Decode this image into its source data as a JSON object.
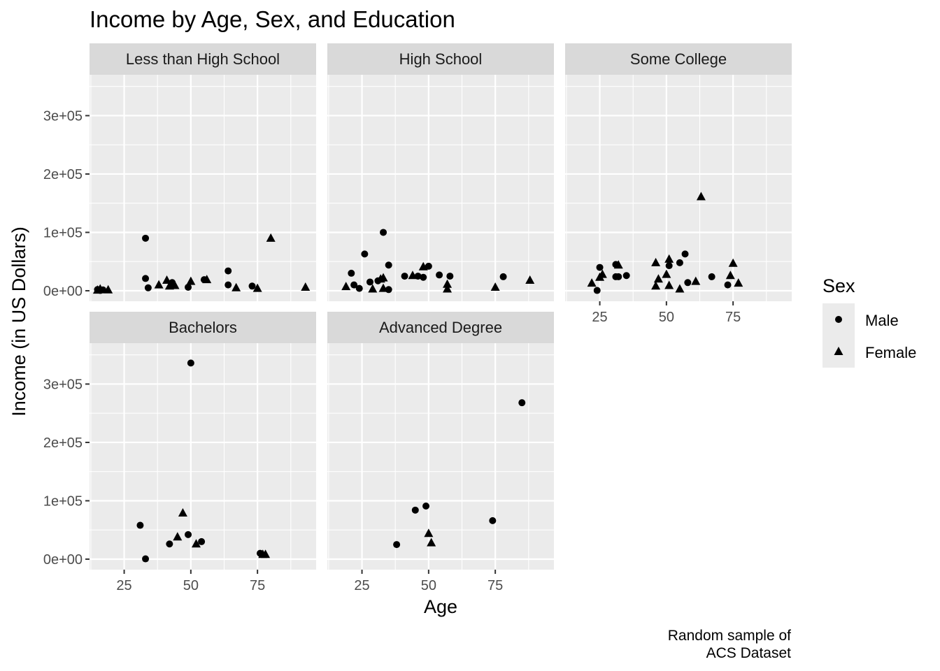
{
  "chart_data": {
    "type": "scatter",
    "title": "Income by Age, Sex, and Education",
    "xlabel": "Age",
    "ylabel": "Income (in US Dollars)",
    "caption": [
      "Random sample of",
      "ACS Dataset"
    ],
    "xlim": [
      12,
      97
    ],
    "ylim": [
      -18000,
      370000
    ],
    "x_ticks": [
      25,
      50,
      75
    ],
    "x_tick_labels": [
      "25",
      "50",
      "75"
    ],
    "y_ticks": [
      0,
      100000,
      200000,
      300000
    ],
    "y_tick_labels": [
      "0e+00",
      "1e+05",
      "2e+05",
      "3e+05"
    ],
    "grid": true,
    "legend": {
      "title": "Sex",
      "position": "right",
      "entries": [
        {
          "label": "Male",
          "shape": "circle"
        },
        {
          "label": "Female",
          "shape": "triangle"
        }
      ]
    },
    "facets": [
      {
        "name": "Less than High School",
        "series": [
          {
            "name": "Male",
            "points": [
              [
                15,
                2000
              ],
              [
                16,
                500
              ],
              [
                17,
                1500
              ],
              [
                33,
                90000
              ],
              [
                33,
                21000
              ],
              [
                34,
                5000
              ],
              [
                43,
                14000
              ],
              [
                49,
                6000
              ],
              [
                55,
                19000
              ],
              [
                64,
                34000
              ],
              [
                64,
                10000
              ],
              [
                73,
                8000
              ]
            ]
          },
          {
            "name": "Female",
            "points": [
              [
                15,
                1000
              ],
              [
                16,
                3000
              ],
              [
                19,
                1500
              ],
              [
                38,
                10000
              ],
              [
                41,
                18000
              ],
              [
                42,
                8000
              ],
              [
                44,
                9000
              ],
              [
                50,
                16000
              ],
              [
                56,
                19000
              ],
              [
                67,
                5000
              ],
              [
                75,
                4000
              ],
              [
                80,
                90000
              ],
              [
                93,
                6000
              ]
            ]
          }
        ]
      },
      {
        "name": "High School",
        "series": [
          {
            "name": "Male",
            "points": [
              [
                21,
                30000
              ],
              [
                22,
                10000
              ],
              [
                24,
                4000
              ],
              [
                26,
                63000
              ],
              [
                28,
                15000
              ],
              [
                31,
                17000
              ],
              [
                33,
                100000
              ],
              [
                35,
                44000
              ],
              [
                35,
                2000
              ],
              [
                41,
                25000
              ],
              [
                46,
                25000
              ],
              [
                48,
                23000
              ],
              [
                50,
                42000
              ],
              [
                54,
                27000
              ],
              [
                58,
                25000
              ],
              [
                78,
                24000
              ]
            ]
          },
          {
            "name": "Female",
            "points": [
              [
                19,
                7000
              ],
              [
                29,
                3000
              ],
              [
                32,
                20000
              ],
              [
                33,
                22000
              ],
              [
                33,
                4000
              ],
              [
                44,
                26000
              ],
              [
                48,
                41000
              ],
              [
                57,
                11000
              ],
              [
                57,
                3000
              ],
              [
                75,
                6000
              ],
              [
                88,
                18000
              ]
            ]
          }
        ]
      },
      {
        "name": "Some College",
        "series": [
          {
            "name": "Male",
            "points": [
              [
                24,
                500
              ],
              [
                25,
                40000
              ],
              [
                31,
                45000
              ],
              [
                31,
                24000
              ],
              [
                32,
                24000
              ],
              [
                35,
                26000
              ],
              [
                51,
                43000
              ],
              [
                55,
                48000
              ],
              [
                57,
                63000
              ],
              [
                58,
                14000
              ],
              [
                67,
                24000
              ],
              [
                73,
                10000
              ]
            ]
          },
          {
            "name": "Female",
            "points": [
              [
                22,
                13000
              ],
              [
                25,
                23000
              ],
              [
                26,
                28000
              ],
              [
                32,
                44000
              ],
              [
                46,
                48000
              ],
              [
                46,
                8000
              ],
              [
                47,
                20000
              ],
              [
                50,
                28000
              ],
              [
                51,
                54000
              ],
              [
                51,
                9000
              ],
              [
                55,
                3000
              ],
              [
                61,
                16000
              ],
              [
                63,
                161000
              ],
              [
                74,
                26000
              ],
              [
                75,
                47000
              ],
              [
                77,
                13000
              ]
            ]
          }
        ]
      },
      {
        "name": "Bachelors",
        "series": [
          {
            "name": "Male",
            "points": [
              [
                31,
                58000
              ],
              [
                33,
                500
              ],
              [
                42,
                26000
              ],
              [
                49,
                42000
              ],
              [
                50,
                336000
              ],
              [
                54,
                30000
              ],
              [
                76,
                10000
              ]
            ]
          },
          {
            "name": "Female",
            "points": [
              [
                45,
                38000
              ],
              [
                47,
                79000
              ],
              [
                52,
                26000
              ],
              [
                77,
                8000
              ],
              [
                78,
                8000
              ]
            ]
          }
        ]
      },
      {
        "name": "Advanced Degree",
        "series": [
          {
            "name": "Male",
            "points": [
              [
                38,
                25000
              ],
              [
                45,
                84000
              ],
              [
                49,
                91000
              ],
              [
                74,
                66000
              ],
              [
                85,
                268000
              ]
            ]
          },
          {
            "name": "Female",
            "points": [
              [
                50,
                44000
              ],
              [
                51,
                28000
              ]
            ]
          }
        ]
      }
    ]
  }
}
